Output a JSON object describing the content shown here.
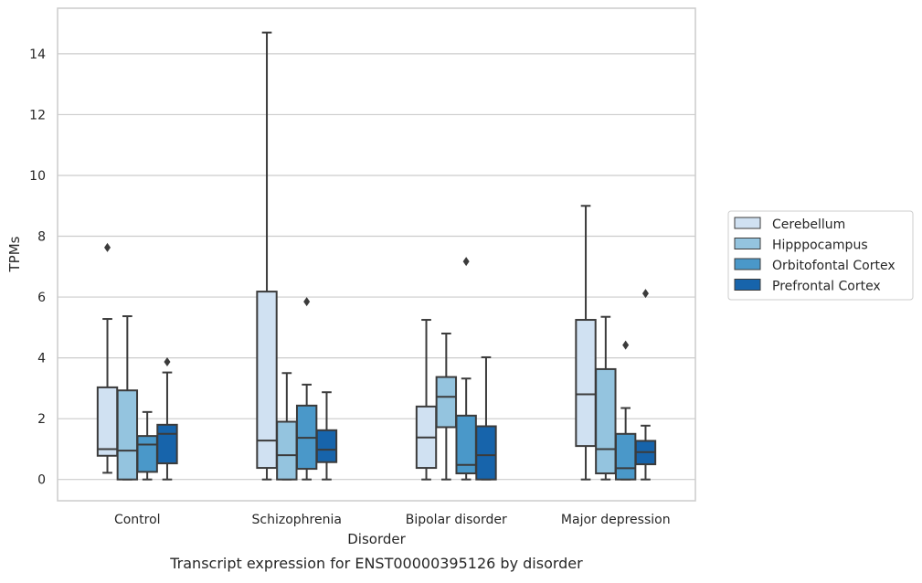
{
  "chart_data": {
    "type": "box",
    "title": "",
    "caption": "Transcript expression for ENST00000395126 by disorder",
    "xlabel": "Disorder",
    "ylabel": "TPMs",
    "ylim": [
      -0.7,
      15.5
    ],
    "yticks": [
      0,
      2,
      4,
      6,
      8,
      10,
      12,
      14
    ],
    "grid": "horizontal",
    "legend_position": "right",
    "categories": [
      "Control",
      "Schizophrenia",
      "Bipolar disorder",
      "Major depression"
    ],
    "series": [
      {
        "name": "Cerebellum",
        "color": "#d0e1f2",
        "boxes": [
          {
            "whislo": 0.22,
            "q1": 0.78,
            "med": 1.0,
            "q3": 3.03,
            "whishi": 5.28,
            "fliers": [
              7.63
            ]
          },
          {
            "whislo": 0.0,
            "q1": 0.38,
            "med": 1.28,
            "q3": 6.18,
            "whishi": 14.7,
            "fliers": []
          },
          {
            "whislo": 0.0,
            "q1": 0.38,
            "med": 1.38,
            "q3": 2.4,
            "whishi": 5.25,
            "fliers": []
          },
          {
            "whislo": 0.0,
            "q1": 1.1,
            "med": 2.8,
            "q3": 5.25,
            "whishi": 9.0,
            "fliers": []
          }
        ]
      },
      {
        "name": "Hipppocampus",
        "color": "#94c4df",
        "boxes": [
          {
            "whislo": 0.0,
            "q1": 0.0,
            "med": 0.95,
            "q3": 2.93,
            "whishi": 5.37,
            "fliers": []
          },
          {
            "whislo": 0.0,
            "q1": 0.0,
            "med": 0.8,
            "q3": 1.9,
            "whishi": 3.5,
            "fliers": []
          },
          {
            "whislo": 0.0,
            "q1": 1.72,
            "med": 2.72,
            "q3": 3.37,
            "whishi": 4.8,
            "fliers": []
          },
          {
            "whislo": 0.0,
            "q1": 0.2,
            "med": 1.0,
            "q3": 3.63,
            "whishi": 5.35,
            "fliers": []
          }
        ]
      },
      {
        "name": "Orbitofontal Cortex",
        "color": "#4a98c9",
        "boxes": [
          {
            "whislo": 0.0,
            "q1": 0.25,
            "med": 1.15,
            "q3": 1.43,
            "whishi": 2.22,
            "fliers": []
          },
          {
            "whislo": 0.0,
            "q1": 0.35,
            "med": 1.37,
            "q3": 2.43,
            "whishi": 3.12,
            "fliers": [
              5.85
            ]
          },
          {
            "whislo": 0.0,
            "q1": 0.2,
            "med": 0.48,
            "q3": 2.1,
            "whishi": 3.32,
            "fliers": [
              7.17
            ]
          },
          {
            "whislo": 0.0,
            "q1": 0.0,
            "med": 0.37,
            "q3": 1.5,
            "whishi": 2.35,
            "fliers": [
              4.42
            ]
          }
        ]
      },
      {
        "name": "Prefrontal Cortex",
        "color": "#1764ab",
        "boxes": [
          {
            "whislo": 0.0,
            "q1": 0.53,
            "med": 1.5,
            "q3": 1.8,
            "whishi": 3.52,
            "fliers": [
              3.87
            ]
          },
          {
            "whislo": 0.0,
            "q1": 0.57,
            "med": 0.98,
            "q3": 1.62,
            "whishi": 2.87,
            "fliers": []
          },
          {
            "whislo": 0.0,
            "q1": 0.0,
            "med": 0.8,
            "q3": 1.75,
            "whishi": 4.02,
            "fliers": []
          },
          {
            "whislo": 0.0,
            "q1": 0.5,
            "med": 0.9,
            "q3": 1.27,
            "whishi": 1.77,
            "fliers": [
              6.12
            ]
          }
        ]
      }
    ]
  }
}
